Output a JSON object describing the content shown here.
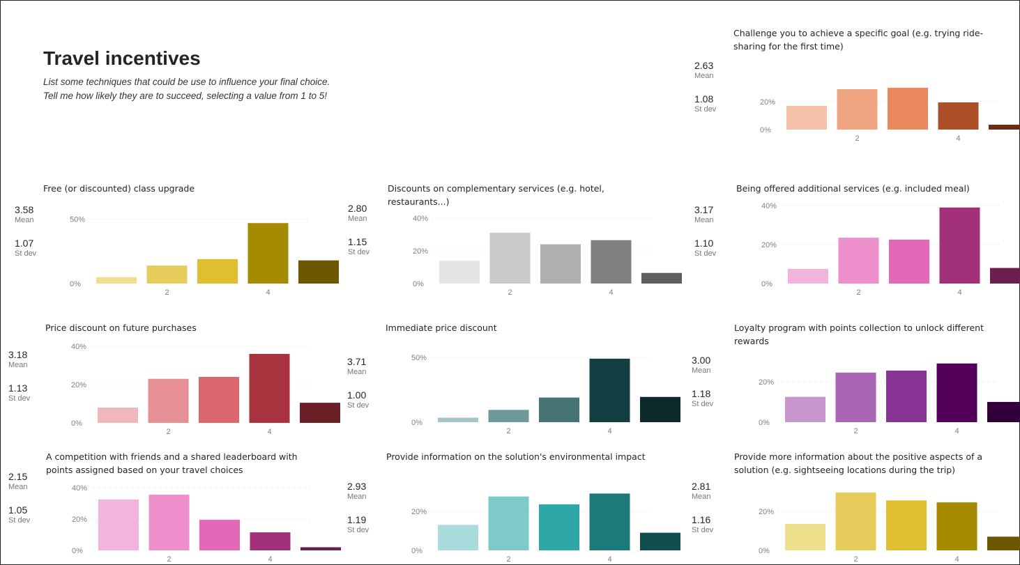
{
  "page": {
    "title": "Travel incentives",
    "subtitle_line1": "List some techniques that could be use to influence your final choice.",
    "subtitle_line2": "Tell me how likely they are to succeed, selecting a value from 1 to 5!"
  },
  "labels": {
    "mean": "Mean",
    "stdev": "St dev"
  },
  "chart_data": [
    {
      "type": "bar",
      "title": "Challenge you to achieve a specific goal (e.g. trying ride-sharing for the first time)",
      "mean": "2.63",
      "stdev": "1.08",
      "categories": [
        1,
        2,
        3,
        4,
        5
      ],
      "x_tick_labels": [
        "2",
        "4"
      ],
      "values": [
        17,
        29,
        30,
        19.5,
        3.5
      ],
      "y_ticks": [
        "0%",
        "20%"
      ],
      "ylim": [
        0,
        33
      ],
      "colors": [
        "#f5c1a8",
        "#efa582",
        "#e9895d",
        "#ad4f28",
        "#6a2d14"
      ]
    },
    {
      "type": "bar",
      "title": "Free (or discounted) class upgrade",
      "mean": "3.58",
      "stdev": "1.07",
      "categories": [
        1,
        2,
        3,
        4,
        5
      ],
      "x_tick_labels": [
        "2",
        "4"
      ],
      "values": [
        5,
        14,
        19,
        47,
        18
      ],
      "y_ticks": [
        "0%",
        "50%"
      ],
      "ylim": [
        0,
        52
      ],
      "colors": [
        "#efe08e",
        "#e6cc5a",
        "#dfbe2f",
        "#a68a00",
        "#6b5800"
      ]
    },
    {
      "type": "bar",
      "title": "Discounts on complementary services (e.g. hotel, restaurants...)",
      "mean": "2.80",
      "stdev": "1.15",
      "categories": [
        1,
        2,
        3,
        4,
        5
      ],
      "x_tick_labels": [
        "2",
        "4"
      ],
      "values": [
        14,
        31,
        24,
        26.5,
        6.5
      ],
      "y_ticks": [
        "0%",
        "20%",
        "40%"
      ],
      "ylim": [
        0,
        40
      ],
      "colors": [
        "#e4e4e4",
        "#c9c9c9",
        "#b0b0b0",
        "#808080",
        "#5e5e5e"
      ]
    },
    {
      "type": "bar",
      "title": "Being offered additional services (e.g. included meal)",
      "mean": "3.17",
      "stdev": "1.10",
      "categories": [
        1,
        2,
        3,
        4,
        5
      ],
      "x_tick_labels": [
        "2",
        "4"
      ],
      "values": [
        7.5,
        23.5,
        22.5,
        39,
        8
      ],
      "y_ticks": [
        "0%",
        "20%",
        "40%"
      ],
      "ylim": [
        0,
        40
      ],
      "colors": [
        "#f2b3dc",
        "#ec8fca",
        "#e468b8",
        "#a3317a",
        "#6b1f4e"
      ]
    },
    {
      "type": "bar",
      "title": "Price discount on future purchases",
      "mean": "3.18",
      "stdev": "1.13",
      "categories": [
        1,
        2,
        3,
        4,
        5
      ],
      "x_tick_labels": [
        "2",
        "4"
      ],
      "values": [
        8,
        23,
        24,
        36,
        10.5
      ],
      "y_ticks": [
        "0%",
        "20%",
        "40%"
      ],
      "ylim": [
        0,
        40
      ],
      "colors": [
        "#f0b8bd",
        "#e68f95",
        "#db6670",
        "#a8323d",
        "#6a1f26"
      ]
    },
    {
      "type": "bar",
      "title": "Immediate price discount",
      "mean": "3.71",
      "stdev": "1.00",
      "categories": [
        1,
        2,
        3,
        4,
        5
      ],
      "x_tick_labels": [
        "2",
        "4"
      ],
      "values": [
        3.5,
        9.5,
        19,
        49,
        19.5
      ],
      "y_ticks": [
        "0%",
        "50%"
      ],
      "ylim": [
        0,
        50
      ],
      "colors": [
        "#a6c4c4",
        "#6e9a9a",
        "#467474",
        "#123f42",
        "#0c2a2b"
      ]
    },
    {
      "type": "bar",
      "title": "Loyalty program with points collection to unlock different rewards",
      "mean": "3.00",
      "stdev": "1.18",
      "categories": [
        1,
        2,
        3,
        4,
        5
      ],
      "x_tick_labels": [
        "2",
        "4"
      ],
      "values": [
        12.5,
        24.5,
        25.5,
        29,
        10
      ],
      "y_ticks": [
        "0%",
        "20%"
      ],
      "ylim": [
        0,
        32
      ],
      "colors": [
        "#c895cd",
        "#a966b2",
        "#8a3396",
        "#52005a",
        "#32003a"
      ]
    },
    {
      "type": "bar",
      "title": "A competition with friends and a shared leaderboard with points assigned based on your travel choices",
      "mean": "2.15",
      "stdev": "1.05",
      "categories": [
        1,
        2,
        3,
        4,
        5
      ],
      "x_tick_labels": [
        "2",
        "4"
      ],
      "values": [
        32.5,
        35.5,
        19.5,
        11.5,
        2
      ],
      "y_ticks": [
        "0%",
        "20%",
        "40%"
      ],
      "ylim": [
        0,
        40
      ],
      "colors": [
        "#f2b3dc",
        "#ec8fca",
        "#e468b8",
        "#a3317a",
        "#6b1f4e"
      ]
    },
    {
      "type": "bar",
      "title": "Provide information on the solution's environmental impact",
      "mean": "2.93",
      "stdev": "1.19",
      "categories": [
        1,
        2,
        3,
        4,
        5
      ],
      "x_tick_labels": [
        "2",
        "4"
      ],
      "values": [
        13,
        27.5,
        23.5,
        29,
        9
      ],
      "y_ticks": [
        "0%",
        "20%"
      ],
      "ylim": [
        0,
        32
      ],
      "colors": [
        "#a9dcdc",
        "#7ecaca",
        "#2ea7a8",
        "#1c7a7a",
        "#134e4f"
      ]
    },
    {
      "type": "bar",
      "title": "Provide more information about the positive aspects of a solution (e.g. sightseeing locations during the trip)",
      "mean": "2.81",
      "stdev": "1.16",
      "categories": [
        1,
        2,
        3,
        4,
        5
      ],
      "x_tick_labels": [
        "2",
        "4"
      ],
      "values": [
        13.5,
        29.5,
        25.5,
        24.5,
        7
      ],
      "y_ticks": [
        "0%",
        "20%"
      ],
      "ylim": [
        0,
        32
      ],
      "colors": [
        "#efe08e",
        "#e6cc5a",
        "#dfbe2f",
        "#a68a00",
        "#6b5800"
      ]
    }
  ]
}
